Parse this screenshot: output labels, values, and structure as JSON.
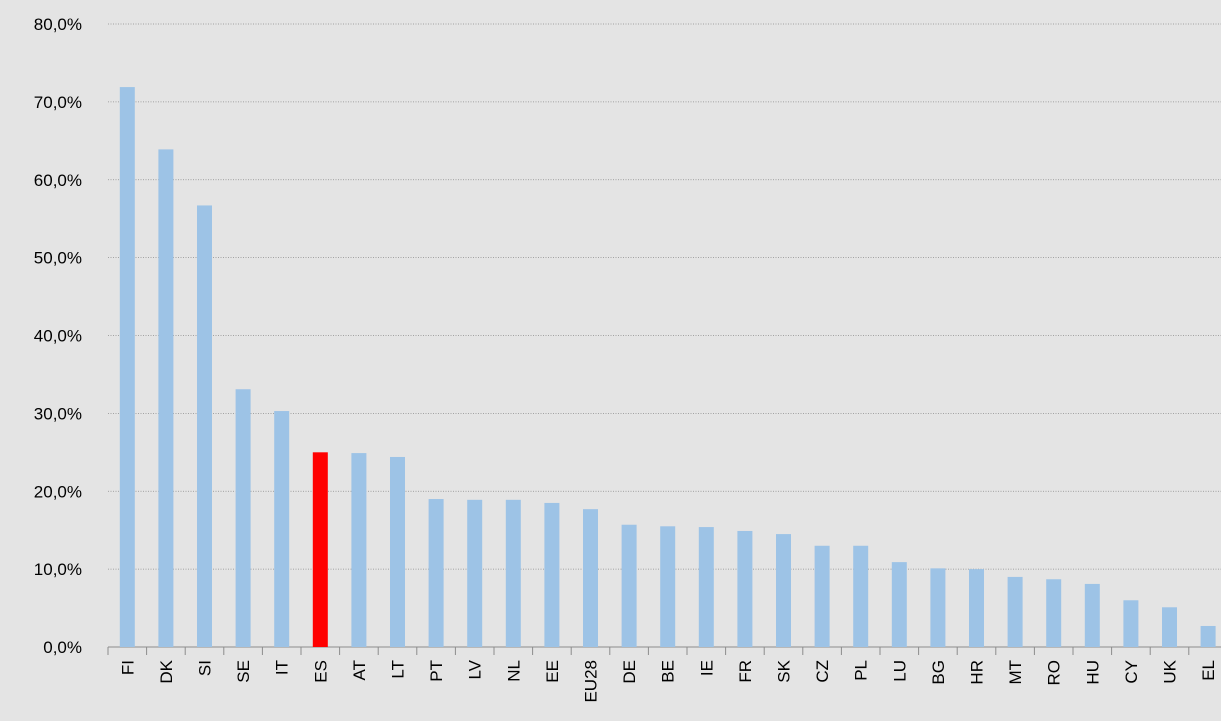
{
  "chart_data": {
    "type": "bar",
    "categories": [
      "FI",
      "DK",
      "SI",
      "SE",
      "IT",
      "ES",
      "AT",
      "LT",
      "PT",
      "LV",
      "NL",
      "EE",
      "EU28",
      "DE",
      "BE",
      "IE",
      "FR",
      "SK",
      "CZ",
      "PL",
      "LU",
      "BG",
      "HR",
      "MT",
      "RO",
      "HU",
      "CY",
      "UK",
      "EL"
    ],
    "values": [
      71.9,
      63.9,
      56.7,
      33.1,
      30.3,
      25.0,
      24.9,
      24.4,
      19.0,
      18.9,
      18.9,
      18.5,
      17.7,
      15.7,
      15.5,
      15.4,
      14.9,
      14.5,
      13.0,
      13.0,
      10.9,
      10.1,
      10.0,
      9.0,
      8.7,
      8.1,
      6.0,
      5.1,
      2.7
    ],
    "colors": [
      "#9dc3e6",
      "#9dc3e6",
      "#9dc3e6",
      "#9dc3e6",
      "#9dc3e6",
      "#ff0000",
      "#9dc3e6",
      "#9dc3e6",
      "#9dc3e6",
      "#9dc3e6",
      "#9dc3e6",
      "#9dc3e6",
      "#9dc3e6",
      "#9dc3e6",
      "#9dc3e6",
      "#9dc3e6",
      "#9dc3e6",
      "#9dc3e6",
      "#9dc3e6",
      "#9dc3e6",
      "#9dc3e6",
      "#9dc3e6",
      "#9dc3e6",
      "#9dc3e6",
      "#9dc3e6",
      "#9dc3e6",
      "#9dc3e6",
      "#9dc3e6",
      "#9dc3e6"
    ],
    "ylim": [
      0,
      80
    ],
    "yticks": [
      {
        "value": 0,
        "label": "0,0%"
      },
      {
        "value": 10,
        "label": "10,0%"
      },
      {
        "value": 20,
        "label": "20,0%"
      },
      {
        "value": 30,
        "label": "30,0%"
      },
      {
        "value": 40,
        "label": "40,0%"
      },
      {
        "value": 50,
        "label": "50,0%"
      },
      {
        "value": 60,
        "label": "60,0%"
      },
      {
        "value": 70,
        "label": "70,0%"
      },
      {
        "value": 80,
        "label": "80,0%"
      }
    ],
    "grid": true
  }
}
